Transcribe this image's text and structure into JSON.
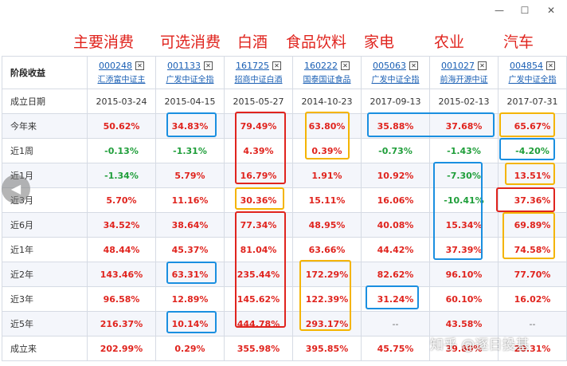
{
  "window": {
    "minimize_glyph": "—",
    "maximize_glyph": "☐",
    "close_glyph": "✕"
  },
  "annotations": [
    "主要消费",
    "可选消费",
    "白酒",
    "食品饮料",
    "家电",
    "农业",
    "汽车"
  ],
  "table": {
    "corner_label": "阶段收益",
    "close_glyph": "✕",
    "funds": [
      {
        "code": "000248",
        "name": "汇添富中证主"
      },
      {
        "code": "001133",
        "name": "广发中证全指"
      },
      {
        "code": "161725",
        "name": "招商中证白酒"
      },
      {
        "code": "160222",
        "name": "国泰国证食品"
      },
      {
        "code": "005063",
        "name": "广发中证全指"
      },
      {
        "code": "001027",
        "name": "前海开源中证"
      },
      {
        "code": "004854",
        "name": "广发中证全指"
      }
    ],
    "rows": [
      {
        "label": "成立日期",
        "kind": "date",
        "values": [
          "2015-03-24",
          "2015-04-15",
          "2015-05-27",
          "2014-10-23",
          "2017-09-13",
          "2015-02-13",
          "2017-07-31"
        ]
      },
      {
        "label": "今年来",
        "values": [
          "50.62%",
          "34.83%",
          "79.49%",
          "63.80%",
          "35.88%",
          "37.68%",
          "65.67%"
        ]
      },
      {
        "label": "近1周",
        "values": [
          "-0.13%",
          "-1.31%",
          "4.39%",
          "0.39%",
          "-0.73%",
          "-1.43%",
          "-4.20%"
        ]
      },
      {
        "label": "近1月",
        "values": [
          "-1.34%",
          "5.79%",
          "16.79%",
          "1.91%",
          "10.92%",
          "-7.30%",
          "13.51%"
        ]
      },
      {
        "label": "近3月",
        "values": [
          "5.70%",
          "11.16%",
          "30.36%",
          "15.11%",
          "16.06%",
          "-10.41%",
          "37.36%"
        ]
      },
      {
        "label": "近6月",
        "values": [
          "34.52%",
          "38.64%",
          "77.34%",
          "48.95%",
          "40.08%",
          "15.34%",
          "69.89%"
        ]
      },
      {
        "label": "近1年",
        "values": [
          "48.44%",
          "45.37%",
          "81.04%",
          "63.66%",
          "44.42%",
          "37.39%",
          "74.58%"
        ]
      },
      {
        "label": "近2年",
        "values": [
          "143.46%",
          "63.31%",
          "235.44%",
          "172.29%",
          "82.62%",
          "96.10%",
          "77.70%"
        ]
      },
      {
        "label": "近3年",
        "values": [
          "96.58%",
          "12.89%",
          "145.62%",
          "122.39%",
          "31.24%",
          "60.10%",
          "16.02%"
        ]
      },
      {
        "label": "近5年",
        "values": [
          "216.37%",
          "10.14%",
          "444.78%",
          "293.17%",
          "--",
          "43.58%",
          "--"
        ]
      },
      {
        "label": "成立来",
        "values": [
          "202.99%",
          "0.29%",
          "355.98%",
          "395.85%",
          "45.75%",
          "39.80%",
          "20.31%"
        ]
      }
    ]
  },
  "colors": {
    "positive": "#e0241e",
    "negative": "#1f9e3a",
    "link": "#1a5fb4",
    "box_blue": "#1a8fe0",
    "box_red": "#e0241e",
    "box_yellow": "#f4b400"
  },
  "watermark": "知乎 @逐日投基"
}
